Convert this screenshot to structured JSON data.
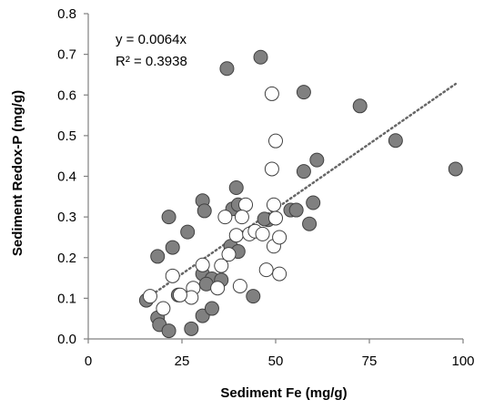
{
  "chart_data": {
    "type": "scatter",
    "xlabel": "Sediment Fe (mg/g)",
    "ylabel": "Sediment Redox-P (mg/g)",
    "xlim": [
      0,
      100
    ],
    "ylim": [
      0,
      0.8
    ],
    "x_ticks": [
      0,
      25,
      50,
      75,
      100
    ],
    "y_ticks": [
      0.0,
      0.1,
      0.2,
      0.3,
      0.4,
      0.5,
      0.6,
      0.7,
      0.8
    ],
    "grid": false,
    "annotations": {
      "equation": "y = 0.0064x",
      "r_squared": "R² = 0.3938"
    },
    "trendline": {
      "slope": 0.0064,
      "intercept": 0,
      "x_range": [
        15,
        98
      ],
      "style": "dotted",
      "color": "#666666"
    },
    "series": [
      {
        "marker": "filled",
        "fill": "#808080",
        "stroke": "#404040",
        "points": [
          [
            37.0,
            0.665
          ],
          [
            46.0,
            0.693
          ],
          [
            57.5,
            0.607
          ],
          [
            72.5,
            0.573
          ],
          [
            82.0,
            0.488
          ],
          [
            98.0,
            0.418
          ],
          [
            61.0,
            0.44
          ],
          [
            57.5,
            0.412
          ],
          [
            39.5,
            0.372
          ],
          [
            30.5,
            0.34
          ],
          [
            31.0,
            0.315
          ],
          [
            38.5,
            0.32
          ],
          [
            40.0,
            0.33
          ],
          [
            60.0,
            0.335
          ],
          [
            54.0,
            0.317
          ],
          [
            55.5,
            0.317
          ],
          [
            21.5,
            0.3
          ],
          [
            48.0,
            0.293
          ],
          [
            59.0,
            0.283
          ],
          [
            47.0,
            0.295
          ],
          [
            26.5,
            0.263
          ],
          [
            22.5,
            0.225
          ],
          [
            38.0,
            0.228
          ],
          [
            40.0,
            0.215
          ],
          [
            18.5,
            0.203
          ],
          [
            30.5,
            0.16
          ],
          [
            33.0,
            0.148
          ],
          [
            35.5,
            0.145
          ],
          [
            31.5,
            0.135
          ],
          [
            15.5,
            0.095
          ],
          [
            24.0,
            0.108
          ],
          [
            44.0,
            0.105
          ],
          [
            18.5,
            0.052
          ],
          [
            19.0,
            0.035
          ],
          [
            21.5,
            0.02
          ],
          [
            27.5,
            0.025
          ],
          [
            30.5,
            0.057
          ],
          [
            33.0,
            0.075
          ]
        ]
      },
      {
        "marker": "open",
        "fill": "#ffffff",
        "stroke": "#404040",
        "points": [
          [
            49.0,
            0.603
          ],
          [
            50.0,
            0.487
          ],
          [
            49.0,
            0.418
          ],
          [
            49.5,
            0.33
          ],
          [
            50.0,
            0.297
          ],
          [
            42.0,
            0.33
          ],
          [
            36.5,
            0.3
          ],
          [
            41.0,
            0.3
          ],
          [
            39.5,
            0.255
          ],
          [
            43.0,
            0.258
          ],
          [
            44.5,
            0.265
          ],
          [
            46.5,
            0.258
          ],
          [
            49.5,
            0.228
          ],
          [
            51.0,
            0.25
          ],
          [
            37.5,
            0.208
          ],
          [
            35.5,
            0.18
          ],
          [
            30.5,
            0.182
          ],
          [
            22.5,
            0.155
          ],
          [
            28.0,
            0.125
          ],
          [
            27.5,
            0.102
          ],
          [
            24.5,
            0.108
          ],
          [
            16.5,
            0.105
          ],
          [
            20.0,
            0.075
          ],
          [
            40.5,
            0.13
          ],
          [
            47.5,
            0.17
          ],
          [
            51.0,
            0.16
          ],
          [
            34.5,
            0.125
          ]
        ]
      }
    ]
  }
}
